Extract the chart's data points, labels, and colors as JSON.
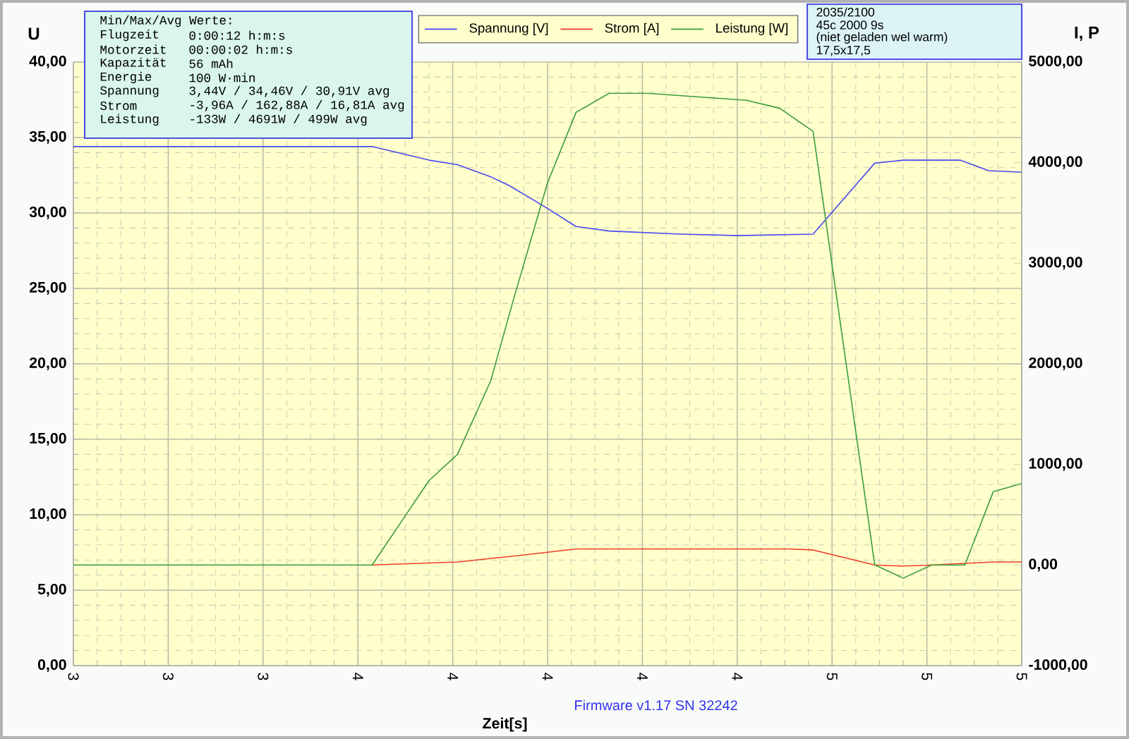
{
  "chart_data": {
    "type": "line",
    "xlabel": "Zeit[s]",
    "ylabel": "U",
    "y2label": "I, P",
    "annotations": [
      "Min/Max/Avg Werte:",
      "Flugzeit",
      "0:00:12 h:m:s",
      "Motorzeit",
      "00:00:02 h:m:s",
      "Kapazität",
      "56 mAh",
      "Energie",
      "100 W·min",
      "Spannung",
      "3,44V / 34,46V / 30,91V avg",
      "Strom",
      "-3,96A / 162,88A / 16,81A avg",
      "Leistung",
      "-133W / 4691W / 499W avg",
      "2035/2100",
      "45c 2000 9s",
      "(niet geladen wel warm)",
      "17,5x17,5",
      "Firmware v1.17 SN 32242"
    ],
    "xlim": [
      3,
      5
    ],
    "xticks": [
      {
        "value": 3.0,
        "label": "3"
      },
      {
        "value": 3.2,
        "label": "3"
      },
      {
        "value": 3.4,
        "label": "3"
      },
      {
        "value": 3.6,
        "label": "4"
      },
      {
        "value": 3.8,
        "label": "4"
      },
      {
        "value": 4.0,
        "label": "4"
      },
      {
        "value": 4.2,
        "label": "4"
      },
      {
        "value": 4.4,
        "label": "4"
      },
      {
        "value": 4.6,
        "label": "5"
      },
      {
        "value": 4.8,
        "label": "5"
      },
      {
        "value": 5.0,
        "label": "5"
      }
    ],
    "ylim": [
      0,
      40
    ],
    "yticks": [
      {
        "value": 0,
        "label": "0,00"
      },
      {
        "value": 5,
        "label": "5,00"
      },
      {
        "value": 10,
        "label": "10,00"
      },
      {
        "value": 15,
        "label": "15,00"
      },
      {
        "value": 20,
        "label": "20,00"
      },
      {
        "value": 25,
        "label": "25,00"
      },
      {
        "value": 30,
        "label": "30,00"
      },
      {
        "value": 35,
        "label": "35,00"
      },
      {
        "value": 40,
        "label": "40,00"
      }
    ],
    "y2lim": [
      -1000,
      5000
    ],
    "y2ticks": [
      {
        "value": -1000,
        "label": "-1000,00"
      },
      {
        "value": 0,
        "label": "0,00"
      },
      {
        "value": 1000,
        "label": "1000,00"
      },
      {
        "value": 2000,
        "label": "2000,00"
      },
      {
        "value": 3000,
        "label": "3000,00"
      },
      {
        "value": 4000,
        "label": "4000,00"
      },
      {
        "value": 5000,
        "label": "5000,00"
      }
    ],
    "grid": true,
    "legend": "top",
    "line_style": "solid",
    "series": [
      {
        "name": "Spannung [V]",
        "color": "#4848f0",
        "axis": "y",
        "x": [
          3.0,
          3.63,
          3.75,
          3.81,
          3.88,
          3.92,
          4.0,
          4.06,
          4.13,
          4.28,
          4.4,
          4.56,
          4.69,
          4.75,
          4.87,
          4.93,
          5.0
        ],
        "values": [
          34.4,
          34.4,
          33.5,
          33.2,
          32.4,
          31.8,
          30.3,
          29.1,
          28.8,
          28.6,
          28.5,
          28.6,
          33.3,
          33.5,
          33.5,
          32.8,
          32.7
        ]
      },
      {
        "name": "Strom [A]",
        "color": "#f03c28",
        "axis": "y2",
        "x": [
          3.63,
          3.81,
          3.95,
          4.06,
          4.51,
          4.56,
          4.69,
          4.75,
          4.81,
          4.94,
          5.0
        ],
        "values": [
          0,
          30,
          100,
          160,
          160,
          150,
          0,
          -10,
          0,
          30,
          30
        ]
      },
      {
        "name": "Leistung [W]",
        "color": "#3c9c3c",
        "axis": "y2",
        "x": [
          3.0,
          3.63,
          3.7,
          3.75,
          3.81,
          3.88,
          3.93,
          4.0,
          4.06,
          4.13,
          4.21,
          4.33,
          4.42,
          4.49,
          4.56,
          4.69,
          4.75,
          4.81,
          4.88,
          4.94,
          5.0
        ],
        "values": [
          0,
          0,
          490,
          840,
          1100,
          1830,
          2670,
          3800,
          4500,
          4690,
          4690,
          4650,
          4620,
          4540,
          4310,
          0,
          -130,
          0,
          0,
          730,
          810
        ]
      }
    ]
  }
}
